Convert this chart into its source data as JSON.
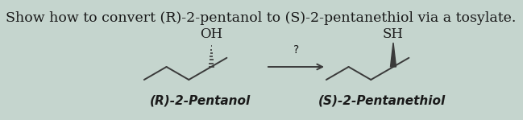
{
  "background_color": "#c5d5ce",
  "title_text": "Show how to convert (R)-2-pentanol to (S)-2-pentanethiol via a tosylate.",
  "title_fontsize": 12.5,
  "mol_left_label": "(R)-2-Pentanol",
  "mol_right_label": "(S)-2-Pentanethiol",
  "label_fontsize": 11,
  "oh_text": "OH",
  "sh_text": "SH",
  "group_fontsize": 12,
  "arrow_question": "?",
  "line_color": "#3a3a3a",
  "text_color": "#1a1a1a"
}
